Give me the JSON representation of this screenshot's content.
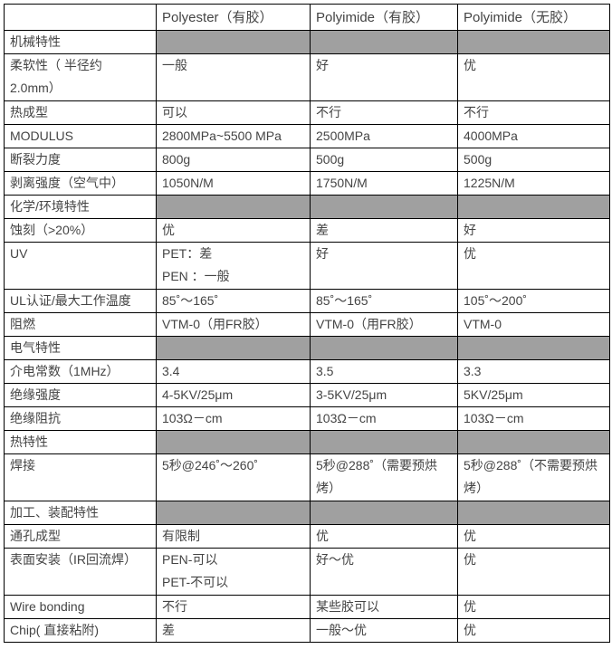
{
  "header": [
    "",
    "Polyester（有胶）",
    "Polyimide（有胶）",
    "Polyimide（无胶）"
  ],
  "rows": [
    {
      "label": "机械特性",
      "section": true,
      "cells": [
        "",
        "",
        ""
      ]
    },
    {
      "label": "柔软性（ 半径约\n2.0mm）",
      "tall": true,
      "cells": [
        "一般",
        "好",
        "优"
      ]
    },
    {
      "label": "热成型",
      "cells": [
        "可以",
        "不行",
        "不行"
      ]
    },
    {
      "label": "MODULUS",
      "cells": [
        "2800MPa~5500 MPa",
        "2500MPa",
        "4000MPa"
      ]
    },
    {
      "label": "断裂力度",
      "cells": [
        "800g",
        "500g",
        "500g"
      ]
    },
    {
      "label": "剥离强度（空气中）",
      "cells": [
        "1050N/M",
        "1750N/M",
        "1225N/M"
      ]
    },
    {
      "label": "化学/环境特性",
      "section": true,
      "cells": [
        "",
        "",
        ""
      ]
    },
    {
      "label": "蚀刻（>20%）",
      "cells": [
        "优",
        "差",
        "好"
      ]
    },
    {
      "label": "UV",
      "tall": true,
      "cells": [
        "PET：差\nPEN ：一般",
        "好",
        "优"
      ]
    },
    {
      "label": "UL认证/最大工作温度",
      "cells": [
        "85˚～165˚",
        "85˚～165˚",
        "105˚～200˚"
      ]
    },
    {
      "label": "阻燃",
      "cells": [
        "VTM-0（用FR胶）",
        "VTM-0（用FR胶）",
        "VTM-0"
      ]
    },
    {
      "label": "电气特性",
      "section": true,
      "cells": [
        "",
        "",
        ""
      ]
    },
    {
      "label": "介电常数（1MHz）",
      "cells": [
        "3.4",
        "3.5",
        "3.3"
      ]
    },
    {
      "label": "绝缘强度",
      "cells": [
        "4-5KV/25μm",
        "3-5KV/25μm",
        "5KV/25μm"
      ]
    },
    {
      "label": "绝缘阻抗",
      "cells": [
        "103Ω－cm",
        "103Ω－cm",
        "103Ω－cm"
      ]
    },
    {
      "label": "热特性",
      "section": true,
      "cells": [
        "",
        "",
        ""
      ]
    },
    {
      "label": "焊接",
      "tall": true,
      "cells": [
        "5秒@246˚～260˚",
        "5秒@288˚（需要预烘\n烤）",
        "5秒@288˚（不需要预烘\n烤）"
      ]
    },
    {
      "label": "加工、装配特性",
      "section": true,
      "cells": [
        "",
        "",
        ""
      ]
    },
    {
      "label": "通孔成型",
      "cells": [
        "有限制",
        "优",
        "优"
      ]
    },
    {
      "label": "表面安装（IR回流焊）",
      "tall": true,
      "cells": [
        "PEN-可以\nPET-不可以",
        "好～优",
        "优"
      ]
    },
    {
      "label": "Wire   bonding",
      "cells": [
        "不行",
        "某些胶可以",
        "优"
      ]
    },
    {
      "label": "Chip(    直接粘附)",
      "cells": [
        "差",
        "一般～优",
        "优"
      ]
    }
  ]
}
